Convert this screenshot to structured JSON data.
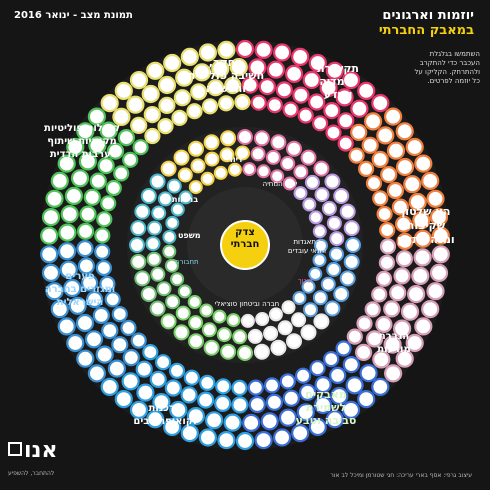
{
  "header": {
    "title_line1": "יוזמות וארגונים",
    "title_line2": "במאבק החברתי",
    "date_label": "תמונת מצב - ינואר 2016",
    "intro": "השתמשו בגלגלת העכבר כדי להתקרב ולהתרחק. הקליקו על כל יוזמה לפרטים."
  },
  "center": {
    "label_line1": "צדק",
    "label_line2": "חברתי",
    "color": "#f5d00f"
  },
  "inner_categories": [
    {
      "label": "דיור",
      "color": "#5aa0e0"
    },
    {
      "label": "יוקר המחיה",
      "color": "#e8e8e8"
    },
    {
      "label": "בריאות",
      "color": "#7bd06b"
    },
    {
      "label": "משפט",
      "color": "#6fbf73"
    },
    {
      "label": "תחבורה",
      "color": "#4bb6c8"
    },
    {
      "label": "התאגדות ותנאי עובדים",
      "color": "#f2d24a"
    },
    {
      "label": "חינוך",
      "color": "#e070a0"
    },
    {
      "label": "חברה וביטחון סוציאלי",
      "color": "#b99ae0"
    }
  ],
  "outer_categories": [
    {
      "label_line1": "מחקר,",
      "label_line2": "חשיבה פוליטית",
      "label_line3": "והכשרה",
      "color": "#e8386d"
    },
    {
      "label_line1": "תקשורת",
      "label_line2": "ני מדיה",
      "label_line3": "ומידע",
      "color": "#f08040"
    },
    {
      "label_line1": "קהילות פוליטיות",
      "label_line2": "מקומיות שיתוף",
      "label_line3": "וערבות הדדית",
      "color": "#d8a0b8"
    },
    {
      "label_line1": "הון שלטון",
      "label_line2": "שקיפות",
      "label_line3": "ומנהל תקין",
      "color": "#3a6fd8"
    },
    {
      "label_line1": "פערים",
      "label_line2": "ומגזרים בחברה",
      "label_line3": "הישראלית",
      "color": "#2f9fe0"
    },
    {
      "label_line1": "הגברת",
      "label_line2": "מודעות",
      "label_line3": "",
      "color": "#3a8fd0"
    },
    {
      "label_line1": "מאבקים",
      "label_line2": "לשמירת",
      "label_line3": "סביבה וטבע",
      "color": "#4fc25a"
    },
    {
      "label_line1": "צרכנות",
      "label_line2": "וקואופרטיבים",
      "label_line3": "",
      "color": "#e8e070"
    }
  ],
  "logo": {
    "mark": "אנו",
    "tagline": "להתחבר, להשפיע",
    "mark_color": "#ffffff"
  },
  "credits": "עיצוב גרפי: אסף בארי  עריכה: חגי שטורמן ומיכל לב אור"
}
